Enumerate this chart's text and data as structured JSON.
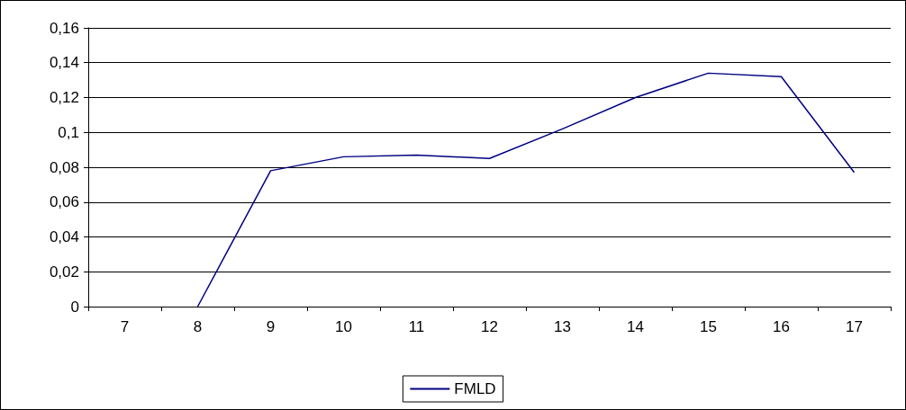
{
  "chart_data": {
    "type": "line",
    "categories": [
      "7",
      "8",
      "9",
      "10",
      "11",
      "12",
      "13",
      "14",
      "15",
      "16",
      "17"
    ],
    "series": [
      {
        "name": "FMLD",
        "color": "#000080",
        "values": [
          null,
          0,
          0.078,
          0.086,
          0.087,
          0.085,
          0.102,
          0.12,
          0.134,
          0.132,
          0.077
        ]
      }
    ],
    "ylim": [
      0,
      0.16
    ],
    "yticks": [
      0,
      {
        "value": 0.02,
        "label": "0,02"
      },
      {
        "value": 0.04,
        "label": "0,04"
      },
      {
        "value": 0.06,
        "label": "0,06"
      },
      {
        "value": 0.08,
        "label": "0,08"
      },
      {
        "value": 0.1,
        "label": "0,1"
      },
      {
        "value": 0.12,
        "label": "0,12"
      },
      {
        "value": 0.14,
        "label": "0,14"
      },
      {
        "value": 0.16,
        "label": "0,16"
      }
    ],
    "grid": "y",
    "legend": "bottom",
    "marker": "none",
    "line_style": "solid"
  }
}
